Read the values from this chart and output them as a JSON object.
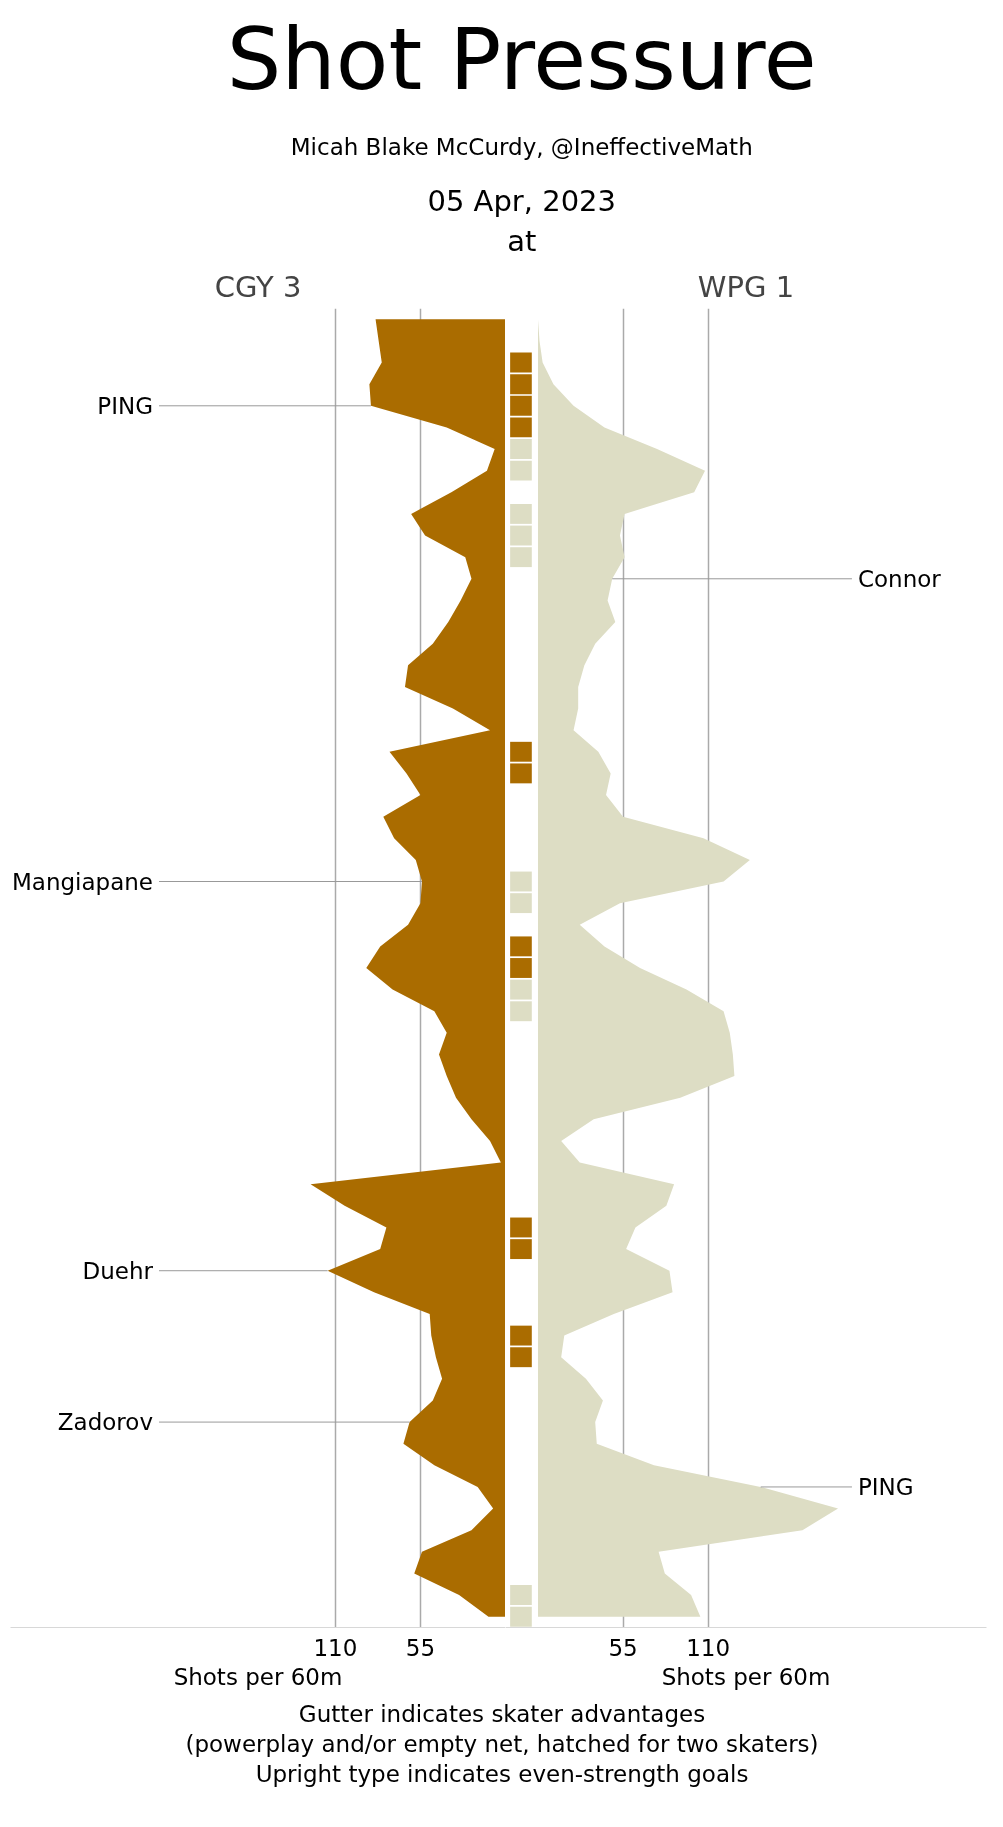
{
  "chart_data": [
    {
      "type": "other",
      "title": "Shot Pressure",
      "subtitle": "Micah Blake McCurdy, @IneffectiveMath",
      "annotations": [
        "05 Apr, 2023",
        "at"
      ]
    },
    {
      "type": "area",
      "orientation": "horizontal",
      "title": "CGY 3",
      "xlabel": "Shots per 60m",
      "xlim": [
        320,
        0
      ],
      "xticks": [
        110,
        55
      ],
      "grid": "x",
      "tick_labels": "x",
      "categories": [
        null,
        null,
        null,
        null,
        null,
        null,
        null,
        null,
        null,
        null,
        null,
        null,
        null,
        null,
        null,
        null,
        null,
        null,
        null,
        null,
        null,
        null,
        null,
        null,
        null,
        null,
        null,
        null,
        null,
        null,
        null,
        null,
        null,
        null,
        null,
        null,
        null,
        null,
        null,
        null,
        null,
        null,
        null,
        null,
        null,
        null,
        null,
        null,
        null,
        null,
        null,
        null,
        null,
        null,
        null,
        null,
        null,
        null,
        null,
        null,
        null
      ],
      "series": [
        {
          "color": "#aa6c00",
          "values": [
            84,
            82,
            80,
            88,
            87,
            38,
            7,
            12,
            35,
            61,
            52,
            26,
            22,
            29,
            37,
            47,
            63,
            65,
            34,
            10,
            75,
            64,
            55,
            79,
            72,
            58,
            54,
            55,
            63,
            81,
            90,
            73,
            46,
            38,
            43,
            38,
            32,
            22,
            10,
            3,
            126,
            104,
            77,
            81,
            115,
            85,
            49,
            48,
            45,
            41,
            47,
            62,
            66,
            46,
            18,
            8,
            22,
            54,
            59,
            30,
            11
          ],
          "value_labels": [
            null,
            null,
            null,
            null,
            "PING",
            null,
            null,
            null,
            null,
            null,
            null,
            null,
            null,
            null,
            null,
            null,
            null,
            null,
            null,
            null,
            null,
            null,
            null,
            null,
            null,
            null,
            "Mangiapane",
            null,
            null,
            null,
            null,
            null,
            null,
            null,
            null,
            null,
            null,
            null,
            null,
            null,
            null,
            null,
            null,
            null,
            "Duehr",
            null,
            null,
            null,
            null,
            null,
            null,
            "Zadorov",
            null,
            null,
            null,
            null,
            null,
            null,
            null,
            null,
            null
          ]
        }
      ]
    },
    {
      "type": "area",
      "orientation": "horizontal",
      "title": "WPG 1",
      "xlabel": "Shots per 60m",
      "xlim": [
        -21,
        290
      ],
      "xticks": [
        55,
        110
      ],
      "grid": "x",
      "tick_labels": "x",
      "categories": [
        null,
        null,
        null,
        null,
        null,
        null,
        null,
        null,
        null,
        null,
        null,
        null,
        null,
        null,
        null,
        null,
        null,
        null,
        null,
        null,
        null,
        null,
        null,
        null,
        null,
        null,
        null,
        null,
        null,
        null,
        null,
        null,
        null,
        null,
        null,
        null,
        null,
        null,
        null,
        null,
        null,
        null,
        null,
        null,
        null,
        null,
        null,
        null,
        null,
        null,
        null,
        null,
        null,
        null,
        null,
        null,
        null,
        null,
        null,
        null,
        null
      ],
      "series": [
        {
          "color": "#ddddc4",
          "values": [
            0,
            1,
            3,
            10,
            23,
            43,
            77,
            108,
            101,
            56,
            53,
            56,
            48,
            45,
            50,
            37,
            30,
            26,
            26,
            23,
            39,
            47,
            44,
            55,
            107,
            137,
            120,
            53,
            27,
            43,
            66,
            96,
            120,
            124,
            126,
            127,
            92,
            36,
            15,
            27,
            88,
            83,
            63,
            57,
            85,
            87,
            49,
            17,
            15,
            31,
            42,
            37,
            38,
            75,
            144,
            194,
            171,
            78,
            82,
            99,
            105
          ],
          "value_labels": [
            null,
            null,
            null,
            null,
            null,
            null,
            null,
            null,
            null,
            null,
            null,
            null,
            "Connor",
            null,
            null,
            null,
            null,
            null,
            null,
            null,
            null,
            null,
            null,
            null,
            null,
            null,
            null,
            null,
            null,
            null,
            null,
            null,
            null,
            null,
            null,
            null,
            null,
            null,
            null,
            null,
            null,
            null,
            null,
            null,
            null,
            null,
            null,
            null,
            null,
            null,
            null,
            null,
            null,
            null,
            "PING",
            null,
            null,
            null,
            null,
            null,
            null
          ]
        },
        {
          "type": "bar",
          "base": [
            null,
            null,
            -18,
            -18,
            -18,
            -18,
            -18,
            -18,
            null,
            -18,
            -18,
            -18,
            null,
            null,
            null,
            null,
            null,
            null,
            null,
            null,
            -18,
            -18,
            null,
            null,
            null,
            null,
            -18,
            -18,
            null,
            -18,
            -18,
            -18,
            -18,
            null,
            null,
            null,
            null,
            null,
            null,
            null,
            null,
            null,
            -18,
            -18,
            null,
            null,
            null,
            -18,
            -18,
            null,
            null,
            null,
            null,
            null,
            null,
            null,
            null,
            null,
            null,
            -18,
            -18
          ],
          "values": [
            null,
            null,
            14,
            14,
            14,
            14,
            14,
            14,
            null,
            14,
            14,
            14,
            null,
            null,
            null,
            null,
            null,
            null,
            null,
            null,
            14,
            14,
            null,
            null,
            null,
            null,
            14,
            14,
            null,
            14,
            14,
            14,
            14,
            null,
            null,
            null,
            null,
            null,
            null,
            null,
            null,
            null,
            14,
            14,
            null,
            null,
            null,
            14,
            14,
            null,
            null,
            null,
            null,
            null,
            null,
            null,
            null,
            null,
            null,
            14,
            14
          ],
          "colors": [
            null,
            null,
            "#aa6c00",
            "#aa6c00",
            "#aa6c00",
            "#aa6c00",
            "#ddddc4",
            "#ddddc4",
            null,
            "#ddddc4",
            "#ddddc4",
            "#ddddc4",
            null,
            null,
            null,
            null,
            null,
            null,
            null,
            null,
            "#aa6c00",
            "#aa6c00",
            null,
            null,
            null,
            null,
            "#ddddc4",
            "#ddddc4",
            null,
            "#aa6c00",
            "#aa6c00",
            "#ddddc4",
            "#ddddc4",
            null,
            null,
            null,
            null,
            null,
            null,
            null,
            null,
            null,
            "#aa6c00",
            "#aa6c00",
            null,
            null,
            null,
            "#aa6c00",
            "#aa6c00",
            null,
            null,
            null,
            null,
            null,
            null,
            null,
            null,
            null,
            null,
            "#ddddc4",
            "#ddddc4"
          ]
        }
      ]
    },
    {
      "type": "other",
      "annotations": [
        "Gutter indicates skater advantages",
        "(powerplay and/or empty net, hatched for two skaters)",
        "Upright type indicates even-strength goals"
      ]
    }
  ]
}
